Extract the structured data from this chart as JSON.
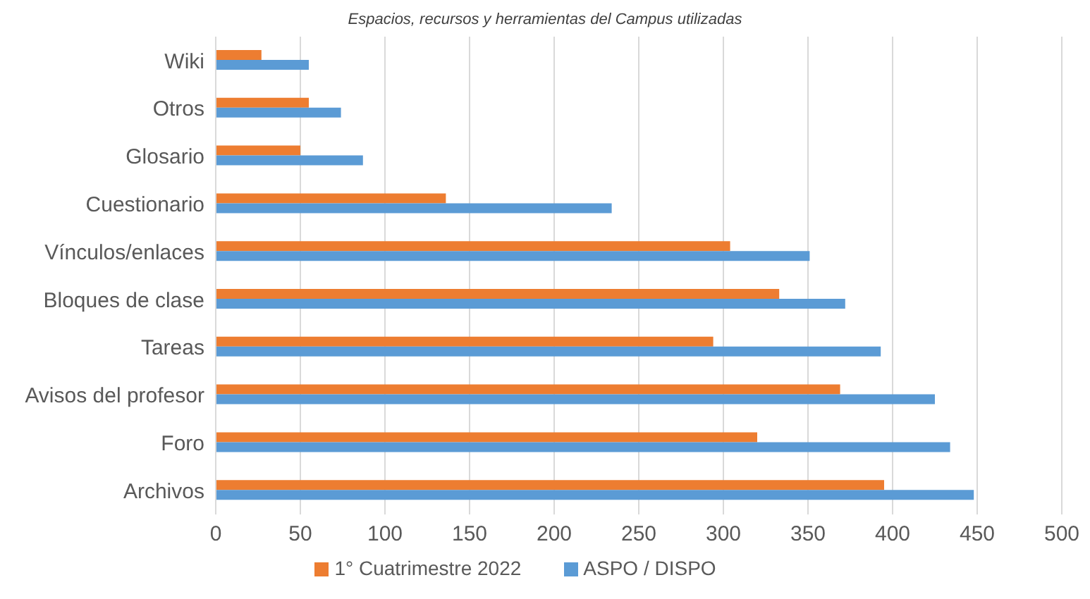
{
  "chart_data": {
    "type": "bar",
    "orientation": "horizontal",
    "title": "Espacios, recursos y herramientas del Campus utilizadas",
    "categories": [
      "Wiki",
      "Otros",
      "Glosario",
      "Cuestionario",
      "Vínculos/enlaces",
      "Bloques de clase",
      "Tareas",
      "Avisos del profesor",
      "Foro",
      "Archivos"
    ],
    "series": [
      {
        "name": "1° Cuatrimestre 2022",
        "color": "#ed7d31",
        "values": [
          27,
          55,
          50,
          136,
          304,
          333,
          294,
          369,
          320,
          395
        ]
      },
      {
        "name": "ASPO / DISPO",
        "color": "#5b9bd5",
        "values": [
          55,
          74,
          87,
          234,
          351,
          372,
          393,
          425,
          434,
          448
        ]
      }
    ],
    "xlim": [
      0,
      500
    ],
    "xticks": [
      0,
      50,
      100,
      150,
      200,
      250,
      300,
      350,
      400,
      450,
      500
    ],
    "grid": "x",
    "legend": "bottom"
  }
}
